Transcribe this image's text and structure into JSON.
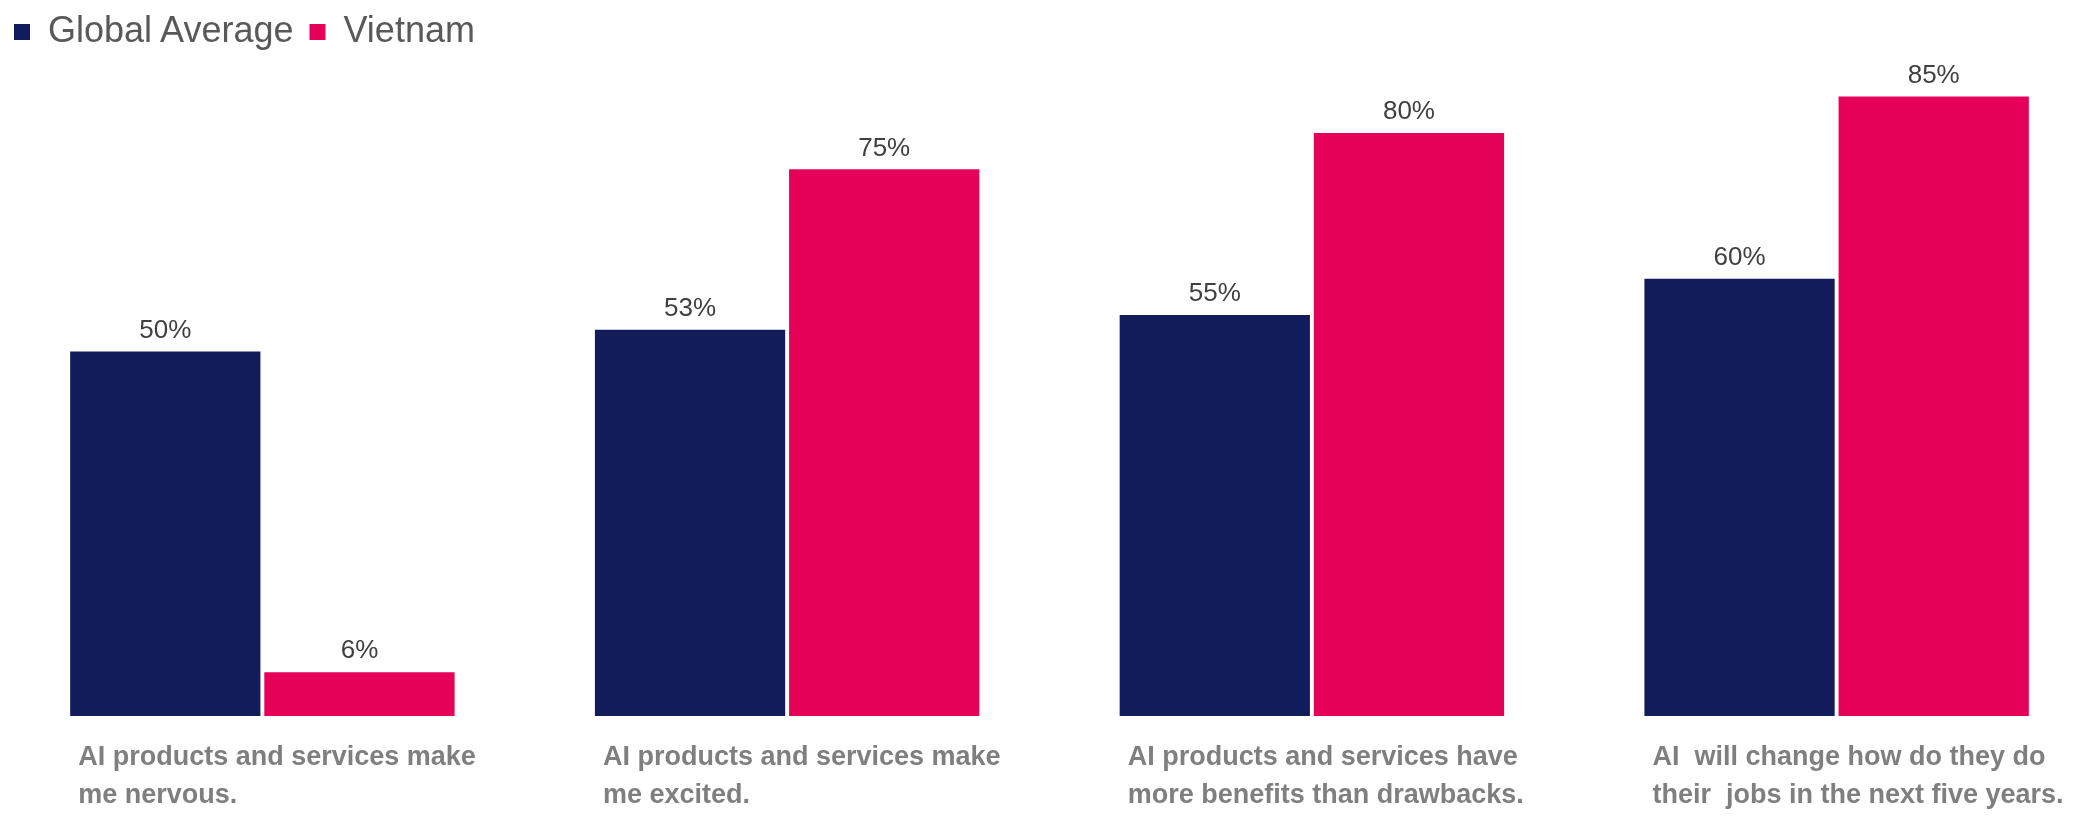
{
  "chart_data": {
    "type": "bar",
    "categories": [
      "AI products and services make me nervous.",
      "AI products and services make me excited.",
      "AI products and services have more benefits than drawbacks.",
      "AI  will change how do they do their  jobs in the next five years."
    ],
    "series": [
      {
        "name": "Global Average",
        "color": "#121c5a",
        "values": [
          50,
          53,
          55,
          60
        ],
        "value_labels": [
          "50%",
          "53%",
          "55%",
          "60%"
        ]
      },
      {
        "name": "Vietnam",
        "color": "#e50058",
        "values": [
          6,
          75,
          80,
          85
        ],
        "value_labels": [
          "6%",
          "75%",
          "80%",
          "85%"
        ]
      }
    ],
    "grid": false,
    "legend": "top left"
  }
}
